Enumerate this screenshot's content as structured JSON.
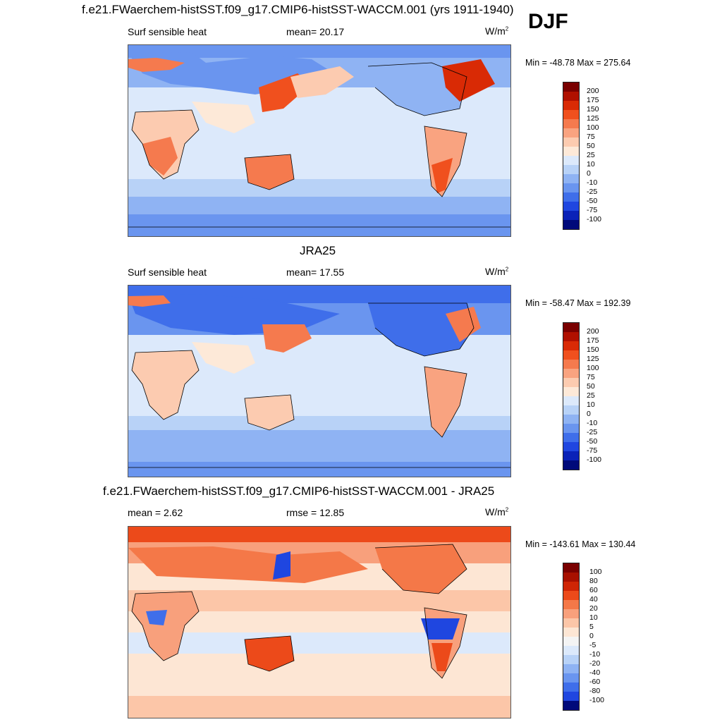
{
  "season": "DJF",
  "colors": {
    "abs_scale": [
      "#7a0000",
      "#b01000",
      "#d92a05",
      "#f0501e",
      "#f57a4e",
      "#f9a380",
      "#fccbb0",
      "#fde9d8",
      "#dce9fb",
      "#b8d2f7",
      "#8fb3f3",
      "#6a95ef",
      "#3f6eea",
      "#1f46e0",
      "#0a22b8",
      "#000a7a"
    ],
    "diff_scale": [
      "#7a0000",
      "#a81000",
      "#cf2505",
      "#ec4a1a",
      "#f47848",
      "#f8a07c",
      "#fcc6a8",
      "#fde6d4",
      "#f4f4f4",
      "#dce9fb",
      "#b8d2f7",
      "#8fb3f3",
      "#6a95ef",
      "#3f6eea",
      "#1f46e0",
      "#0a22b8",
      "#000a7a"
    ]
  },
  "panels": [
    {
      "title": "f.e21.FWaerchem-histSST.f09_g17.CMIP6-histSST-WACCM.001 (yrs 1911-1940)",
      "left": "Surf sensible heat",
      "center": "mean=  20.17",
      "units": "W/m",
      "units_sup": "2",
      "minmax": "Min = -48.78 Max = 275.64",
      "colorbar_labels": [
        "200",
        "175",
        "150",
        "125",
        "100",
        "75",
        "50",
        "25",
        "10",
        "0",
        "-10",
        "-25",
        "-50",
        "-75",
        "-100"
      ]
    },
    {
      "title": "JRA25",
      "left": "Surf sensible heat",
      "center": "mean=  17.55",
      "units": "W/m",
      "units_sup": "2",
      "minmax": "Min = -58.47 Max = 192.39",
      "colorbar_labels": [
        "200",
        "175",
        "150",
        "125",
        "100",
        "75",
        "50",
        "25",
        "10",
        "0",
        "-10",
        "-25",
        "-50",
        "-75",
        "-100"
      ]
    },
    {
      "title": "f.e21.FWaerchem-histSST.f09_g17.CMIP6-histSST-WACCM.001 - JRA25",
      "left": "mean =   2.62",
      "center": "rmse =  12.85",
      "units": "W/m",
      "units_sup": "2",
      "minmax": "Min = -143.61 Max = 130.44",
      "colorbar_labels": [
        "100",
        "80",
        "60",
        "40",
        "20",
        "10",
        "5",
        "0",
        "-5",
        "-10",
        "-20",
        "-40",
        "-60",
        "-80",
        "-100"
      ]
    }
  ]
}
